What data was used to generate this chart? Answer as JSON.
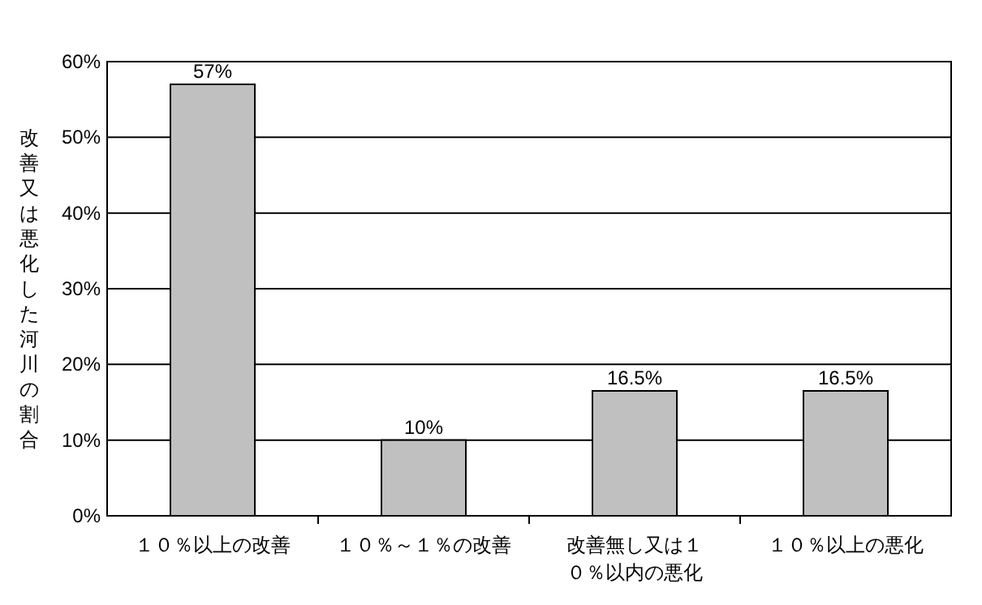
{
  "chart_data": {
    "type": "bar",
    "ylabel": "改善又は悪化した河川の割合",
    "categories": [
      "１０％以上の改善",
      "１０％～１％の改善",
      "改善無し又は１０％以内の悪化",
      "１０％以上の悪化"
    ],
    "values": [
      57,
      10,
      16.5,
      16.5
    ],
    "value_labels": [
      "57%",
      "10%",
      "16.5%",
      "16.5%"
    ],
    "color": "#c0c0c0",
    "ylim": [
      0,
      60
    ],
    "yticks": [
      {
        "value": 0,
        "label": "0%"
      },
      {
        "value": 10,
        "label": "10%"
      },
      {
        "value": 20,
        "label": "20%"
      },
      {
        "value": 30,
        "label": "30%"
      },
      {
        "value": 40,
        "label": "40%"
      },
      {
        "value": 50,
        "label": "50%"
      },
      {
        "value": 60,
        "label": "60%"
      }
    ],
    "grid": "y"
  }
}
